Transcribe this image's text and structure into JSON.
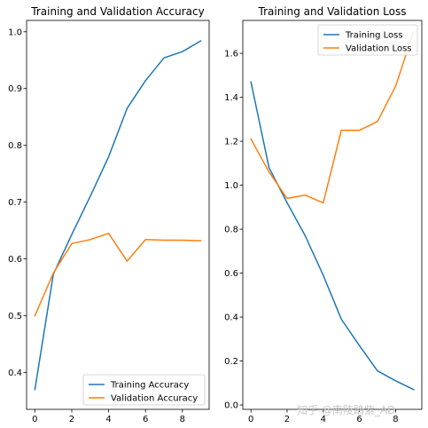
{
  "chart_data": [
    {
      "type": "line",
      "title": "Training and Validation Accuracy",
      "xlabel": "",
      "ylabel": "",
      "x": [
        0,
        1,
        2,
        3,
        4,
        5,
        6,
        7,
        8,
        9
      ],
      "xlim": [
        -0.45,
        9.45
      ],
      "ylim": [
        0.335,
        1.02
      ],
      "xticks": [
        0,
        2,
        4,
        6,
        8
      ],
      "yticks": [
        0.4,
        0.5,
        0.6,
        0.7,
        0.8,
        0.9,
        1.0
      ],
      "series": [
        {
          "name": "Training Accuracy",
          "color": "#1f77b4",
          "values": [
            0.37,
            0.573,
            0.643,
            0.71,
            0.78,
            0.865,
            0.914,
            0.954,
            0.965,
            0.984
          ]
        },
        {
          "name": "Validation Accuracy",
          "color": "#ff7f0e",
          "values": [
            0.5,
            0.575,
            0.627,
            0.634,
            0.645,
            0.596,
            0.634,
            0.633,
            0.633,
            0.632
          ]
        }
      ],
      "legend": "lower right",
      "grid": false
    },
    {
      "type": "line",
      "title": "Training and Validation Loss",
      "xlabel": "",
      "ylabel": "",
      "x": [
        0,
        1,
        2,
        3,
        4,
        5,
        6,
        7,
        8,
        9
      ],
      "xlim": [
        -0.45,
        9.45
      ],
      "ylim": [
        -0.02,
        1.75
      ],
      "xticks": [
        0,
        2,
        4,
        6,
        8
      ],
      "yticks": [
        0.0,
        0.2,
        0.4,
        0.6,
        0.8,
        1.0,
        1.2,
        1.4,
        1.6
      ],
      "series": [
        {
          "name": "Training Loss",
          "color": "#1f77b4",
          "values": [
            1.47,
            1.08,
            0.92,
            0.77,
            0.59,
            0.39,
            0.27,
            0.155,
            0.11,
            0.07
          ]
        },
        {
          "name": "Validation Loss",
          "color": "#ff7f0e",
          "values": [
            1.21,
            1.06,
            0.94,
            0.955,
            0.92,
            1.25,
            1.25,
            1.29,
            1.45,
            1.7
          ]
        }
      ],
      "legend": "upper right",
      "grid": false
    }
  ],
  "watermark": "知乎 @南陵踏紫_AD"
}
